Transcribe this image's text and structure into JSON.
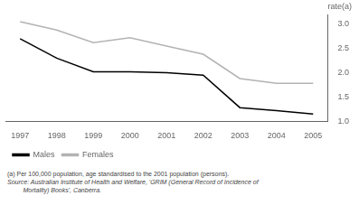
{
  "chart_data": {
    "type": "line",
    "ylabel": "rate(a)",
    "annotations": [
      "(a) Per 100,000 population, age standardised to the 2001 population (persons).",
      "Source: Australian Institute of Health and Welfare, 'GRIM (General Record of Incidence of\n         Mortality) Books', Canberra."
    ],
    "x": [
      1997,
      1998,
      1999,
      2000,
      2001,
      2002,
      2003,
      2004,
      2005
    ],
    "series": [
      {
        "name": "Males",
        "color": "#000000",
        "values": [
          2.7,
          2.3,
          2.02,
          2.02,
          2.0,
          1.95,
          1.28,
          1.22,
          1.15
        ]
      },
      {
        "name": "Females",
        "color": "#b3b3b3",
        "values": [
          3.05,
          2.88,
          2.62,
          2.72,
          2.55,
          2.38,
          1.88,
          1.78,
          1.78
        ]
      }
    ],
    "xlim": [
      1996.6,
      2005.4
    ],
    "xticks": [
      1997,
      1998,
      1999,
      2000,
      2001,
      2002,
      2003,
      2004,
      2005
    ],
    "ylim": [
      1.0,
      3.2
    ],
    "yticks": [
      {
        "value": 1.0,
        "label": "1.0"
      },
      1.5,
      {
        "value": 2.0,
        "label": "2.0"
      },
      2.5,
      {
        "value": 3.0,
        "label": "3.0"
      }
    ],
    "grid": false,
    "legend": "lower left"
  }
}
